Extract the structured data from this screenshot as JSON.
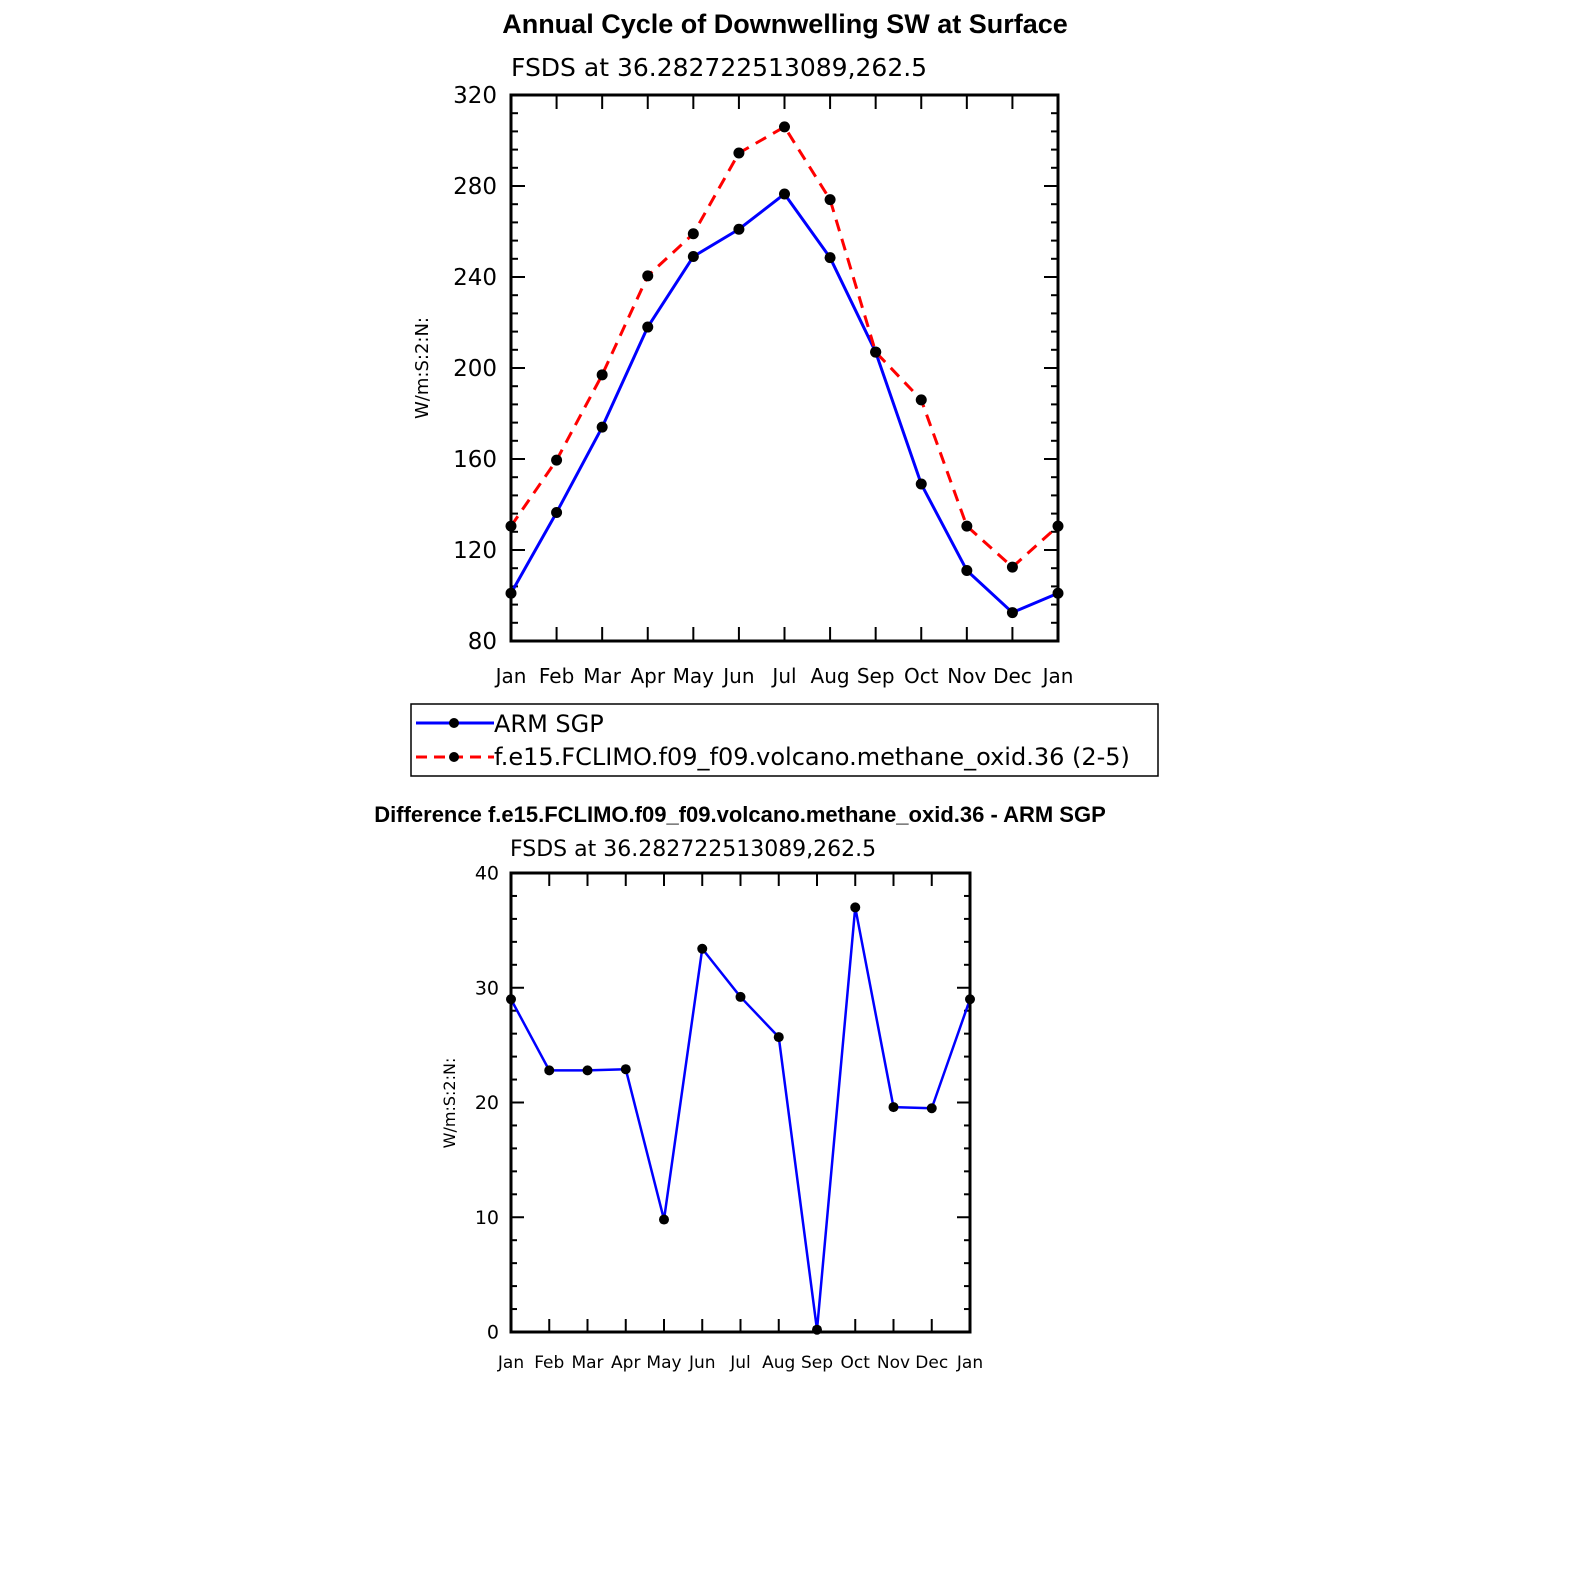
{
  "colors": {
    "obs": "#0000ff",
    "model": "#ff0000",
    "marker": "#000000",
    "axis": "#000000"
  },
  "chart_data": [
    {
      "type": "line",
      "title": "Annual Cycle of Downwelling SW at Surface",
      "subtitle": "FSDS at 36.282722513089,262.5",
      "ylabel": "W/m:S:2:N:",
      "xlabel": "",
      "categories": [
        "Jan",
        "Feb",
        "Mar",
        "Apr",
        "May",
        "Jun",
        "Jul",
        "Aug",
        "Sep",
        "Oct",
        "Nov",
        "Dec",
        "Jan"
      ],
      "ylim": [
        80,
        320
      ],
      "yticks": [
        80,
        120,
        160,
        200,
        240,
        280,
        320
      ],
      "grid": false,
      "legend_position": "below",
      "series": [
        {
          "name": "ARM SGP",
          "style": "solid",
          "color": "#0000ff",
          "values": [
            101,
            136.5,
            174,
            218,
            249,
            261,
            276.5,
            248.5,
            207,
            149,
            111,
            92.5,
            101
          ]
        },
        {
          "name": "f.e15.FCLIMO.f09_f09.volcano.methane_oxid.36 (2-5)",
          "style": "dashed",
          "color": "#ff0000",
          "values": [
            130.5,
            159.5,
            197,
            240.5,
            259,
            294.5,
            306,
            274,
            207,
            186,
            130.5,
            112.5,
            130.5
          ]
        }
      ]
    },
    {
      "type": "line",
      "title": "Difference f.e15.FCLIMO.f09_f09.volcano.methane_oxid.36 - ARM SGP",
      "subtitle": "FSDS at 36.282722513089,262.5",
      "ylabel": "W/m:S:2:N:",
      "xlabel": "",
      "categories": [
        "Jan",
        "Feb",
        "Mar",
        "Apr",
        "May",
        "Jun",
        "Jul",
        "Aug",
        "Sep",
        "Oct",
        "Nov",
        "Dec",
        "Jan"
      ],
      "ylim": [
        0,
        40
      ],
      "yticks": [
        0,
        10,
        20,
        30,
        40
      ],
      "grid": false,
      "series": [
        {
          "style": "solid",
          "color": "#0000ff",
          "values": [
            29,
            22.8,
            22.8,
            22.9,
            9.8,
            33.4,
            29.2,
            25.7,
            0.2,
            37,
            19.6,
            19.5,
            29
          ]
        }
      ]
    }
  ]
}
